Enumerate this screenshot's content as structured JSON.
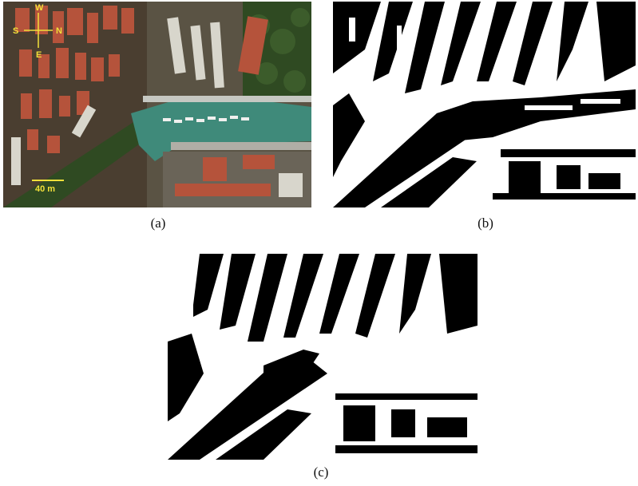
{
  "figure": {
    "panels": [
      {
        "label": "(a)",
        "kind": "aerial-photo"
      },
      {
        "label": "(b)",
        "kind": "binary-mask"
      },
      {
        "label": "(c)",
        "kind": "binary-mask"
      }
    ],
    "compass": {
      "top": "W",
      "left": "S",
      "right": "N",
      "bottom": "E"
    },
    "scale_bar": {
      "text": "40 m"
    },
    "colors": {
      "compass": "#f2e03a",
      "water": "#3f8a7a",
      "roofs": "#b5533b",
      "vegetation": "#2f4a22"
    }
  }
}
